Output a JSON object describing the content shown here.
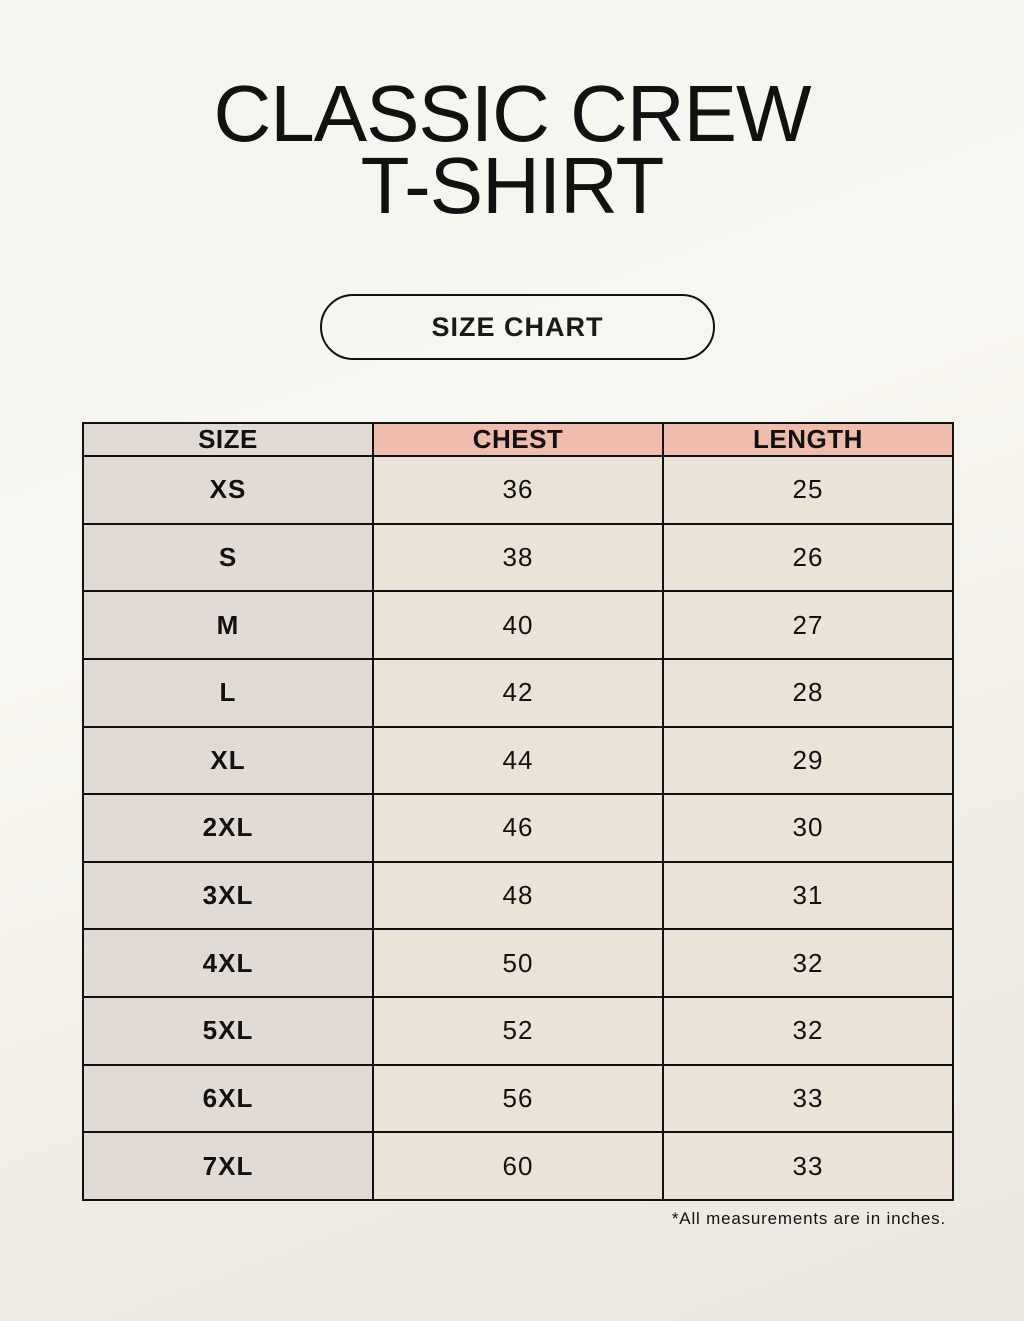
{
  "title": {
    "line1": "CLASSIC CREW",
    "line2": "T-SHIRT"
  },
  "subtitle": "SIZE CHART",
  "table": {
    "headers": [
      "SIZE",
      "CHEST",
      "LENGTH"
    ],
    "rows": [
      [
        "XS",
        "36",
        "25"
      ],
      [
        "S",
        "38",
        "26"
      ],
      [
        "M",
        "40",
        "27"
      ],
      [
        "L",
        "42",
        "28"
      ],
      [
        "XL",
        "44",
        "29"
      ],
      [
        "2XL",
        "46",
        "30"
      ],
      [
        "3XL",
        "48",
        "31"
      ],
      [
        "4XL",
        "50",
        "32"
      ],
      [
        "5XL",
        "52",
        "32"
      ],
      [
        "6XL",
        "56",
        "33"
      ],
      [
        "7XL",
        "60",
        "33"
      ]
    ]
  },
  "footnote": "*All measurements are in inches.",
  "colors": {
    "header_accent": "#efbcad",
    "size_column": "#e2dad5",
    "cell": "#ebe3d8"
  }
}
